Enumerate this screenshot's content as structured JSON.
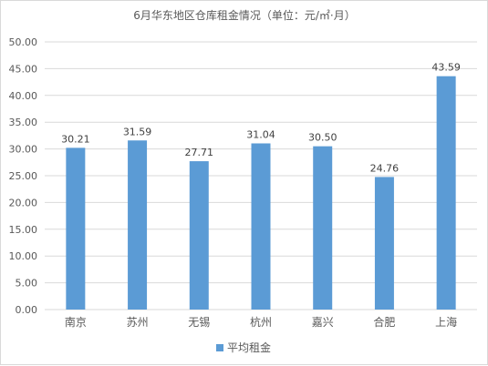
{
  "chart_data": {
    "type": "bar",
    "title": "6月华东地区仓库租金情况（单位：元/㎡·月）",
    "categories": [
      "南京",
      "苏州",
      "无锡",
      "杭州",
      "嘉兴",
      "合肥",
      "上海"
    ],
    "series": [
      {
        "name": "平均租金",
        "values": [
          30.21,
          31.59,
          27.71,
          31.04,
          30.5,
          24.76,
          43.59
        ],
        "labels": [
          "30.21",
          "31.59",
          "27.71",
          "31.04",
          "30.50",
          "24.76",
          "43.59"
        ]
      }
    ],
    "yticks": [
      "0.00",
      "5.00",
      "10.00",
      "15.00",
      "20.00",
      "25.00",
      "30.00",
      "35.00",
      "40.00",
      "45.00",
      "50.00"
    ],
    "ylim": [
      0,
      50
    ],
    "grid": true,
    "legend_position": "bottom",
    "bar_color": "#5b9bd5",
    "grid_color": "#d9d9d9"
  }
}
